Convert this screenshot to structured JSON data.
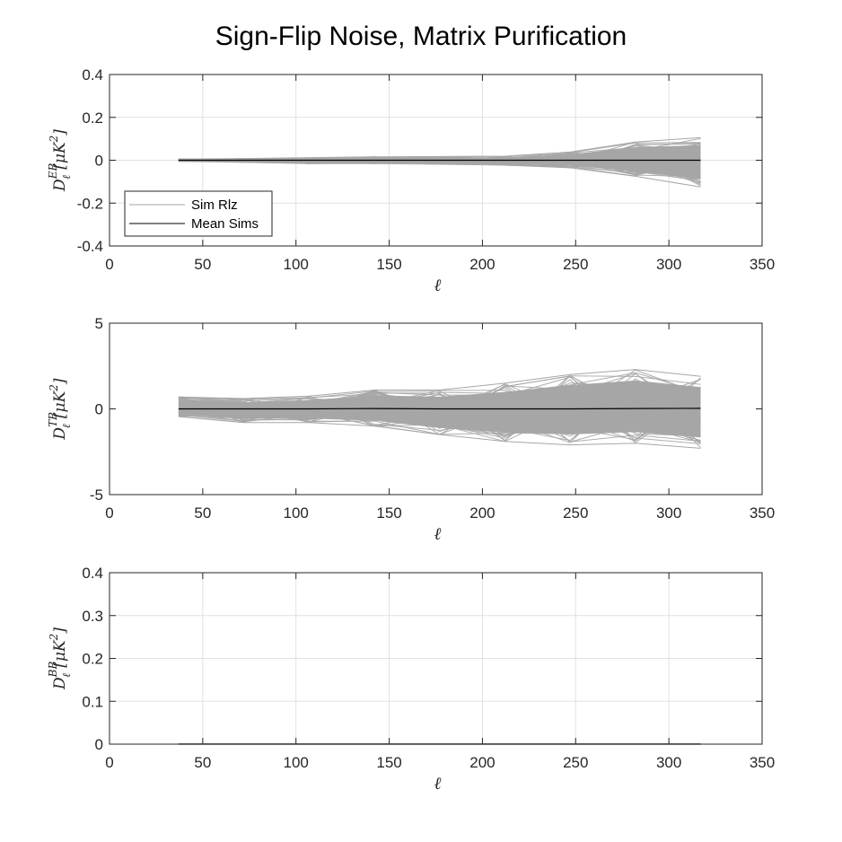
{
  "figure": {
    "title": "Sign-Flip Noise, Matrix Purification"
  },
  "chart_data": [
    {
      "type": "line",
      "xlabel": "ℓ",
      "ylabel": {
        "base": "D",
        "sup": "EB",
        "sub": "ℓ",
        "unit_open": "[μK",
        "unit_exp": "2",
        "unit_close": "]"
      },
      "xlim": [
        0,
        350
      ],
      "ylim": [
        -0.4,
        0.4
      ],
      "xticks": [
        0,
        50,
        100,
        150,
        200,
        250,
        300,
        350
      ],
      "xtick_labels": [
        "0",
        "50",
        "100",
        "150",
        "200",
        "250",
        "300",
        "350"
      ],
      "yticks": [
        -0.4,
        -0.2,
        0,
        0.2,
        0.4
      ],
      "ytick_labels": [
        "-0.4",
        "-0.2",
        "0",
        "0.2",
        "0.4"
      ],
      "grid": true,
      "x": [
        37,
        72,
        107,
        142,
        177,
        212,
        247,
        282,
        317
      ],
      "series": [
        {
          "name": "Sim Rlz",
          "role": "envelope",
          "color": "#a6a6a6",
          "upper": [
            0.006,
            0.008,
            0.012,
            0.016,
            0.017,
            0.019,
            0.038,
            0.085,
            0.105
          ],
          "lower": [
            -0.006,
            -0.01,
            -0.016,
            -0.016,
            -0.019,
            -0.023,
            -0.035,
            -0.075,
            -0.125
          ]
        },
        {
          "name": "Mean Sims",
          "role": "mean",
          "color": "#000000",
          "values": [
            0,
            0,
            0,
            0,
            0,
            0,
            0,
            0,
            0
          ]
        }
      ],
      "legend": {
        "position": "lower-left",
        "entries": [
          "Sim Rlz",
          "Mean Sims"
        ]
      }
    },
    {
      "type": "line",
      "xlabel": "ℓ",
      "ylabel": {
        "base": "D",
        "sup": "TB",
        "sub": "ℓ",
        "unit_open": "[μK",
        "unit_exp": "2",
        "unit_close": "]"
      },
      "xlim": [
        0,
        350
      ],
      "ylim": [
        -5,
        5
      ],
      "xticks": [
        0,
        50,
        100,
        150,
        200,
        250,
        300,
        350
      ],
      "xtick_labels": [
        "0",
        "50",
        "100",
        "150",
        "200",
        "250",
        "300",
        "350"
      ],
      "yticks": [
        -5,
        0,
        5
      ],
      "ytick_labels": [
        "-5",
        "0",
        "5"
      ],
      "grid": false,
      "x": [
        37,
        72,
        107,
        142,
        177,
        212,
        247,
        282,
        317
      ],
      "series": [
        {
          "name": "Sim Rlz",
          "role": "envelope",
          "color": "#a6a6a6",
          "upper": [
            0.7,
            0.6,
            0.75,
            1.1,
            1.1,
            1.5,
            2.0,
            2.3,
            1.9
          ],
          "lower": [
            -0.45,
            -0.8,
            -0.8,
            -1.0,
            -1.5,
            -1.9,
            -2.1,
            -2.0,
            -2.3
          ]
        },
        {
          "name": "Mean Sims",
          "role": "mean",
          "color": "#000000",
          "values": [
            0,
            0,
            0,
            0.02,
            0,
            0,
            0,
            0.02,
            0.03
          ]
        }
      ]
    },
    {
      "type": "line",
      "xlabel": "ℓ",
      "ylabel": {
        "base": "D",
        "sup": "BB",
        "sub": "ℓ",
        "unit_open": "[μK",
        "unit_exp": "2",
        "unit_close": "]"
      },
      "xlim": [
        0,
        350
      ],
      "ylim": [
        0,
        0.4
      ],
      "xticks": [
        0,
        50,
        100,
        150,
        200,
        250,
        300,
        350
      ],
      "xtick_labels": [
        "0",
        "50",
        "100",
        "150",
        "200",
        "250",
        "300",
        "350"
      ],
      "yticks": [
        0,
        0.1,
        0.2,
        0.3,
        0.4
      ],
      "ytick_labels": [
        "0",
        "0.1",
        "0.2",
        "0.3",
        "0.4"
      ],
      "grid": true,
      "x": [
        37,
        72,
        107,
        142,
        177,
        212,
        247,
        282,
        317
      ],
      "series": [
        {
          "name": "Sim Rlz",
          "role": "envelope",
          "color": "#a6a6a6",
          "upper": [
            0.0005,
            0.0005,
            0.0005,
            0.0005,
            0.0005,
            0.0005,
            0.0005,
            0.0005,
            0.0005
          ],
          "lower": [
            0,
            0,
            0,
            0,
            0,
            0,
            0,
            0,
            0
          ]
        },
        {
          "name": "Mean Sims",
          "role": "mean",
          "color": "#000000",
          "values": [
            0,
            0,
            0,
            0,
            0,
            0,
            0,
            0,
            0
          ]
        }
      ]
    }
  ]
}
